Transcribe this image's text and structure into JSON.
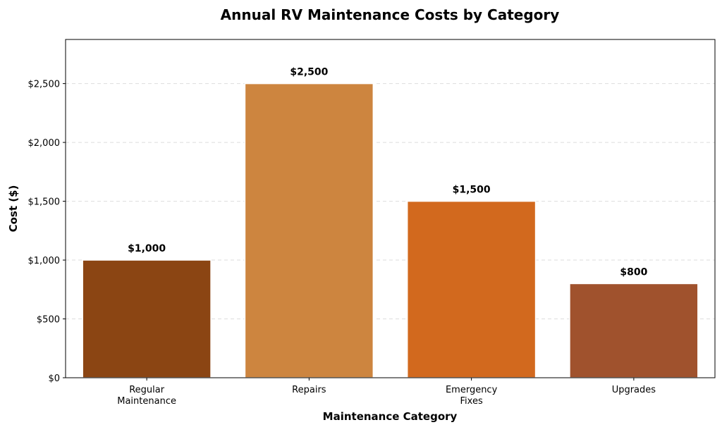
{
  "chart_data": {
    "type": "bar",
    "title": "Annual RV Maintenance Costs by Category",
    "xlabel": "Maintenance Category",
    "ylabel": "Cost ($)",
    "categories": [
      "Regular\nMaintenance",
      "Repairs",
      "Emergency\nFixes",
      "Upgrades"
    ],
    "values": [
      1000,
      2500,
      1500,
      800
    ],
    "value_labels": [
      "$1,000",
      "$2,500",
      "$1,500",
      "$800"
    ],
    "colors": [
      "#8B4513",
      "#CD853F",
      "#D2691E",
      "#A0522D"
    ],
    "ylim": [
      0,
      2875
    ],
    "yticks": [
      0,
      500,
      1000,
      1500,
      2000,
      2500
    ],
    "ytick_labels": [
      "$0",
      "$500",
      "$1,000",
      "$1,500",
      "$2,000",
      "$2,500"
    ],
    "grid": "y-dashed",
    "legend": "none"
  }
}
